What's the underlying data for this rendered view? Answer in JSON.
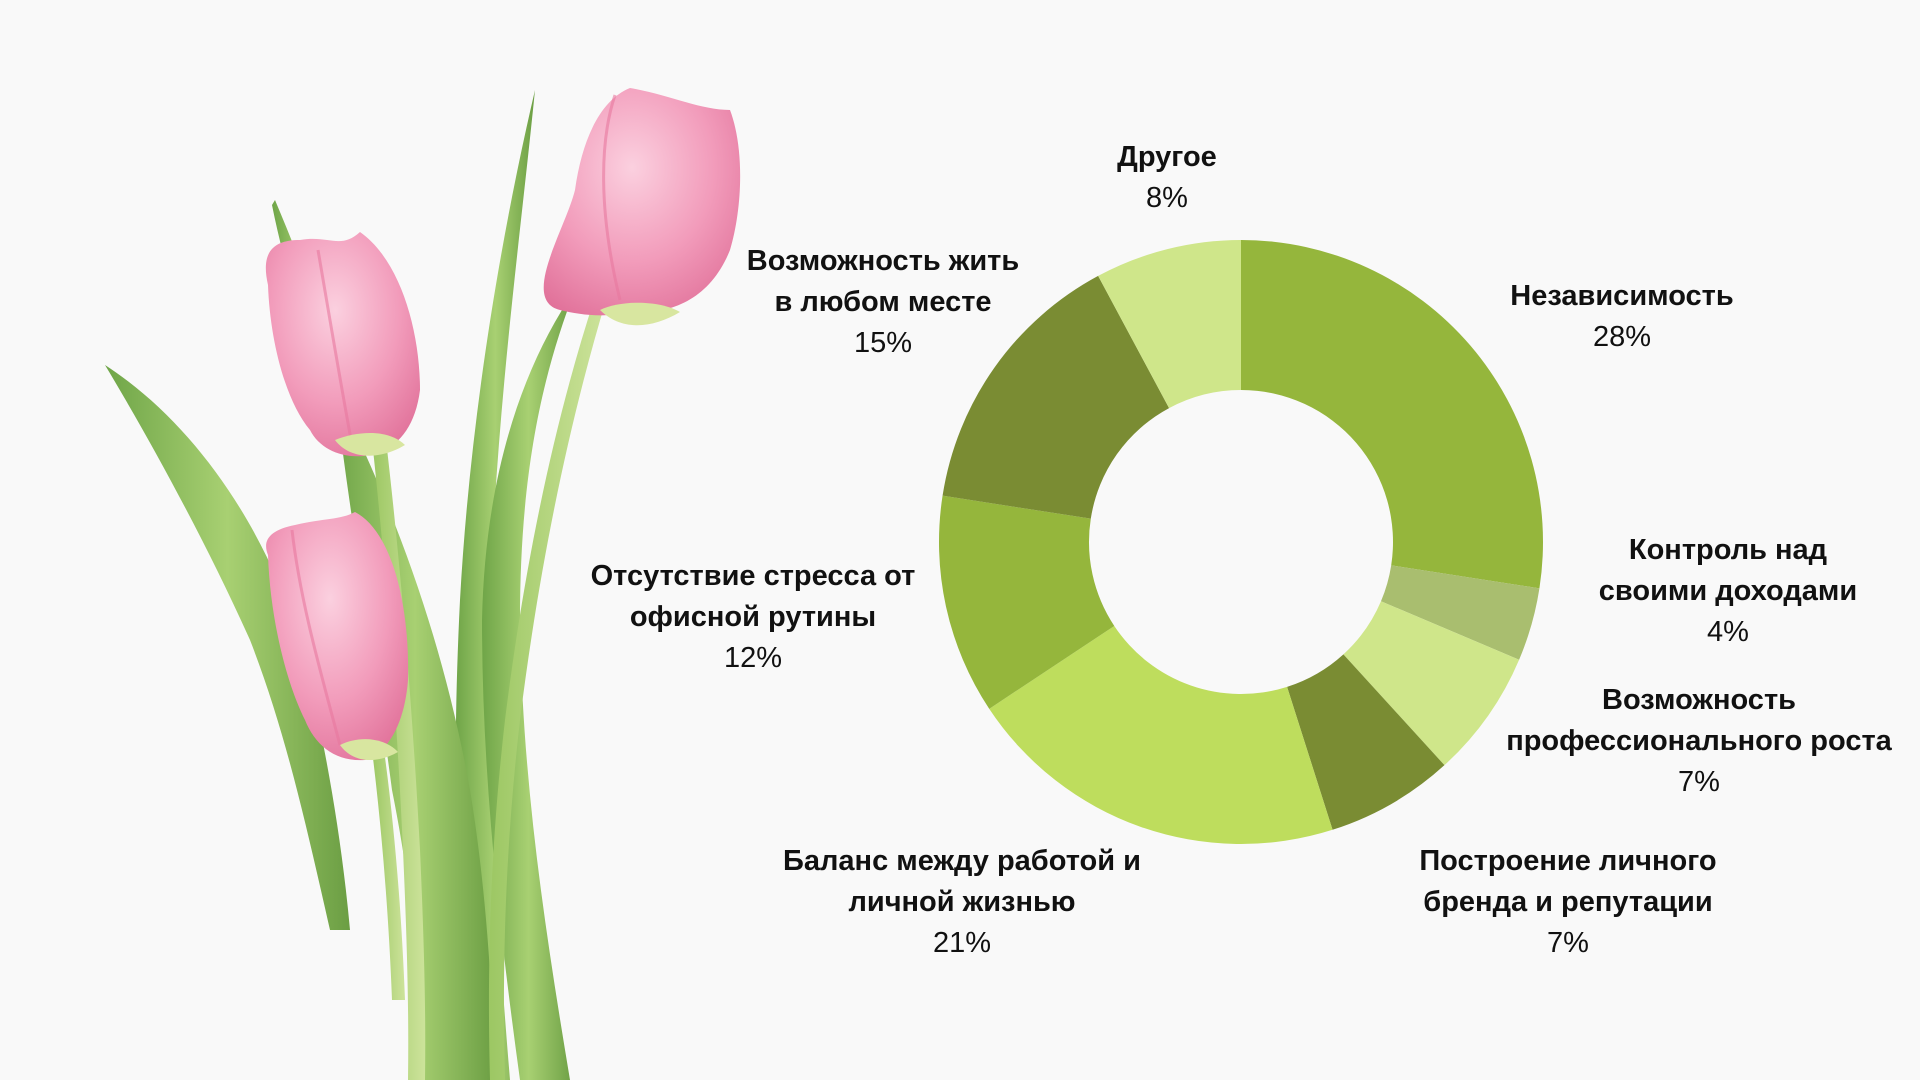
{
  "chart_data": {
    "type": "donut",
    "title": "",
    "slices": [
      {
        "label": "Независимость",
        "value": 28,
        "value_text": "28%",
        "color": "#95b63c"
      },
      {
        "label": "Контроль над\nсвоими доходами",
        "value": 4,
        "value_text": "4%",
        "color": "#a9be6f"
      },
      {
        "label": "Возможность\nпрофессионального роста",
        "value": 7,
        "value_text": "7%",
        "color": "#cfe68a"
      },
      {
        "label": "Построение личного\nбренда и репутации",
        "value": 7,
        "value_text": "7%",
        "color": "#7a8c33"
      },
      {
        "label": "Баланс между работой и\nличной жизнью",
        "value": 21,
        "value_text": "21%",
        "color": "#bedd5d"
      },
      {
        "label": "Отсутствие стресса от\nофисной рутины",
        "value": 12,
        "value_text": "12%",
        "color": "#95b63c"
      },
      {
        "label": "Возможность жить\nв любом месте",
        "value": 15,
        "value_text": "15%",
        "color": "#7a8c33"
      },
      {
        "label": "Другое",
        "value": 8,
        "value_text": "8%",
        "color": "#cfe68a"
      }
    ],
    "start": "12 o'clock",
    "direction": "clockwise",
    "legend": "labels beside slices"
  },
  "decoration": {
    "image": "pink-tulips-bouquet",
    "petal_color": "#f09ab8",
    "leaf_color": "#8fc05a"
  }
}
